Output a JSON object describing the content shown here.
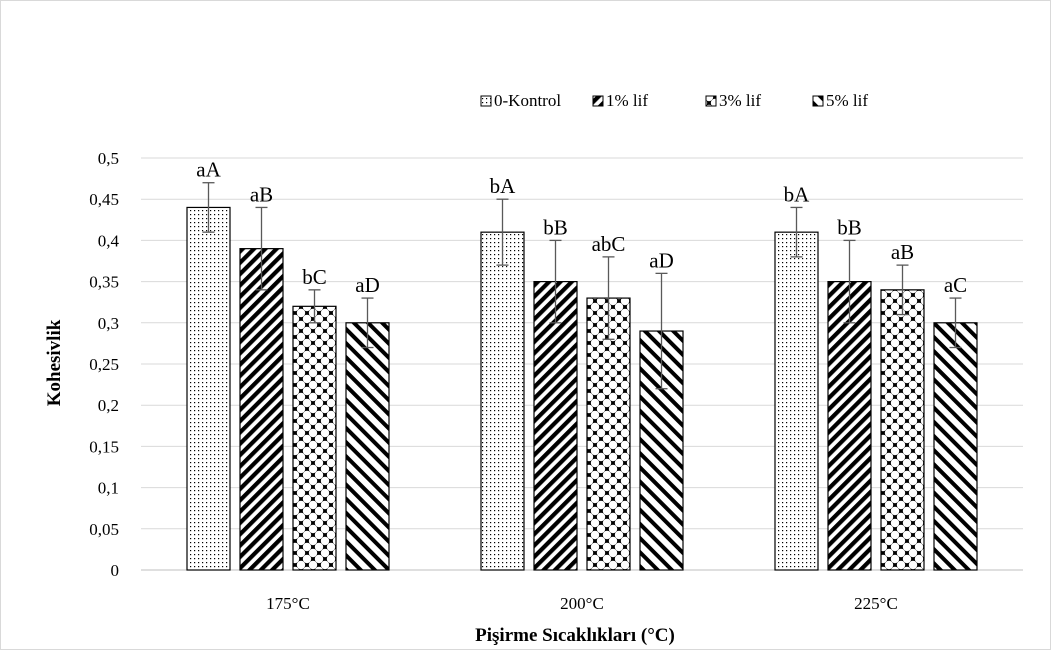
{
  "chart_data": {
    "type": "bar",
    "title": "",
    "xlabel": "Pişirme Sıcaklıkları (°C)",
    "ylabel": "Kohesivlik",
    "categories": [
      "175°C",
      "200°C",
      "225°C"
    ],
    "ylim": [
      0,
      0.5
    ],
    "yticks": [
      "0",
      "0,05",
      "0,1",
      "0,15",
      "0,2",
      "0,25",
      "0,3",
      "0,35",
      "0,4",
      "0,45",
      "0,5"
    ],
    "grid": true,
    "legend_position": "top-right",
    "series": [
      {
        "name": "0-Kontrol",
        "pattern": "dots",
        "values": [
          0.44,
          0.41,
          0.41
        ],
        "errors": [
          0.03,
          0.04,
          0.03
        ],
        "labels": [
          "aA",
          "bA",
          "bA"
        ]
      },
      {
        "name": "1% lif",
        "pattern": "wide-diagonal",
        "values": [
          0.39,
          0.35,
          0.35
        ],
        "errors": [
          0.05,
          0.05,
          0.05
        ],
        "labels": [
          "aB",
          "bB",
          "bB"
        ]
      },
      {
        "name": "3% lif",
        "pattern": "checker",
        "values": [
          0.32,
          0.33,
          0.34
        ],
        "errors": [
          0.02,
          0.05,
          0.03
        ],
        "labels": [
          "bC",
          "abC",
          "aB"
        ]
      },
      {
        "name": "5% lif",
        "pattern": "back-diagonal",
        "values": [
          0.3,
          0.29,
          0.3
        ],
        "errors": [
          0.03,
          0.07,
          0.03
        ],
        "labels": [
          "aD",
          "aD",
          "aC"
        ]
      }
    ]
  }
}
